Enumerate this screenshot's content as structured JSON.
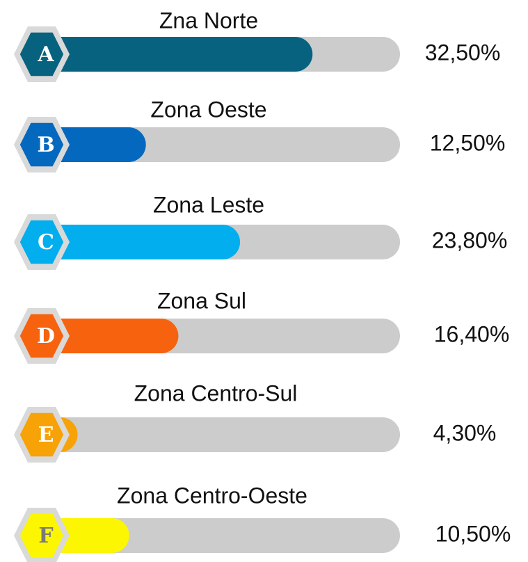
{
  "chart_data": {
    "type": "progress-bar",
    "categories": [
      "Zna Norte",
      "Zona Oeste",
      "Zona Leste",
      "Zona Sul",
      "Zona Centro-Sul",
      "Zona Centro-Oeste"
    ],
    "letters": [
      "A",
      "B",
      "C",
      "D",
      "E",
      "F"
    ],
    "values": [
      32.5,
      12.5,
      23.8,
      16.4,
      4.3,
      10.5
    ],
    "value_labels": [
      "32,50%",
      "12,50%",
      "23,80%",
      "16,40%",
      "4,30%",
      "10,50%"
    ],
    "colors": [
      "#07627f",
      "#0368be",
      "#02aeed",
      "#f6620d",
      "#f7a206",
      "#fcf602"
    ],
    "letter_colors": [
      "#ffffff",
      "#ffffff",
      "#ffffff",
      "#ffffff",
      "#ffffff",
      "#7a7a7a"
    ],
    "track_color": "#cccccc",
    "xlim": [
      0,
      43
    ]
  }
}
